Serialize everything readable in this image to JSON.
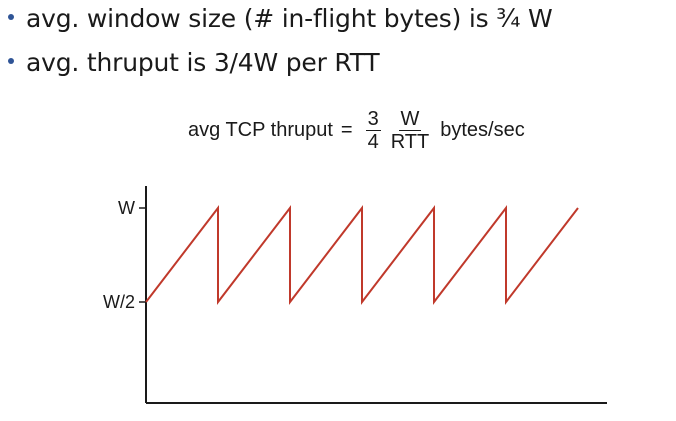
{
  "bullets": [
    "avg. window size (# in-flight bytes) is ¾ W",
    "avg. thruput is 3/4W per RTT"
  ],
  "formula": {
    "lhs": "avg TCP thruput",
    "equals": "=",
    "frac1_num": "3",
    "frac1_den": "4",
    "frac2_num": "W",
    "frac2_den": "RTT",
    "unit": "bytes/sec"
  },
  "graph": {
    "y_tick_top": "W",
    "y_tick_mid": "W/2",
    "line_color": "#c0392b",
    "sawtooth_cycles": 5,
    "final_ramp_fraction": 1.0
  }
}
